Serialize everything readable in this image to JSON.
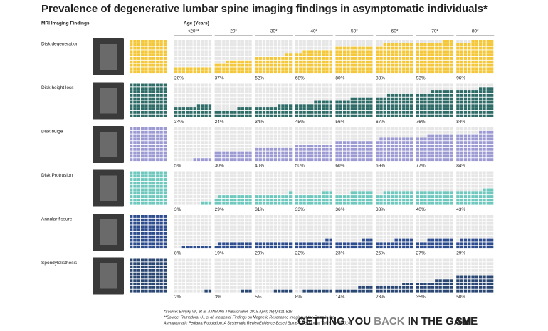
{
  "chart_data": {
    "type": "waffle",
    "title": "Prevalence of degenerative lumbar spine imaging findings in asymptomatic individuals*",
    "row_header": "MRI Imaging Findings",
    "column_header": "Age (Years)",
    "categories": [
      "<20**",
      "20*",
      "30*",
      "40*",
      "50*",
      "60*",
      "70*",
      "80*"
    ],
    "empty_color": "#e6e6e6",
    "series": [
      {
        "name": "Disk degeneration",
        "color": "#f5c73a",
        "values": [
          20,
          37,
          52,
          68,
          80,
          88,
          93,
          96
        ],
        "value_labels": [
          "20%",
          "37%",
          "52%",
          "68%",
          "80%",
          "88%",
          "93%",
          "96%"
        ]
      },
      {
        "name": "Disk height loss",
        "color": "#2f6c68",
        "values": [
          34,
          24,
          34,
          45,
          56,
          67,
          76,
          84
        ],
        "value_labels": [
          "34%",
          "24%",
          "34%",
          "45%",
          "56%",
          "67%",
          "76%",
          "84%"
        ]
      },
      {
        "name": "Disk bulge",
        "color": "#9c9ad3",
        "values": [
          5,
          30,
          40,
          50,
          60,
          69,
          77,
          84
        ],
        "value_labels": [
          "5%",
          "30%",
          "40%",
          "50%",
          "60%",
          "69%",
          "77%",
          "84%"
        ]
      },
      {
        "name": "Disk Protrusion",
        "color": "#6fc8be",
        "values": [
          3,
          29,
          31,
          33,
          36,
          38,
          40,
          43
        ],
        "value_labels": [
          "3%",
          "29%",
          "31%",
          "33%",
          "36%",
          "38%",
          "40%",
          "43%"
        ]
      },
      {
        "name": "Annular fissure",
        "color": "#2e4d8f",
        "values": [
          8,
          19,
          20,
          22,
          23,
          25,
          27,
          29
        ],
        "value_labels": [
          "8%",
          "19%",
          "20%",
          "22%",
          "23%",
          "25%",
          "27%",
          "29%"
        ]
      },
      {
        "name": "Spondylolisthesis",
        "color": "#2a4672",
        "values": [
          2,
          3,
          5,
          8,
          14,
          23,
          35,
          50
        ],
        "value_labels": [
          "2%",
          "3%",
          "5%",
          "8%",
          "14%",
          "23%",
          "35%",
          "50%"
        ]
      }
    ]
  },
  "footer": {
    "sources": [
      "*Source: Brinjikji W., et al. AJNR Am J Neuroradiol. 2015 April; 36(4):811-816",
      "**Source: Ramadorai U., et al. Incidental Findings on Magnetic Resonance Imaging of the Spine in the",
      "Asymptomatic Pediatric Population: A Systematic ReviewEvidence-Based Spine-Care Journal Vol. 5 No. 2/2014"
    ],
    "slogan": [
      "GETTING YOU ",
      "BACK",
      " IN THE GAME"
    ],
    "logo": "SM"
  }
}
